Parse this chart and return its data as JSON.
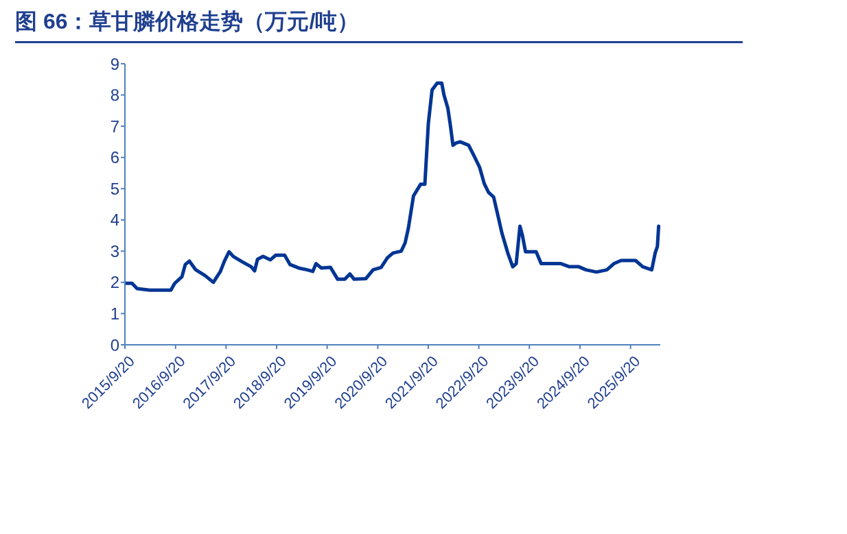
{
  "chart_data": {
    "type": "line",
    "title": "图 66：草甘膦价格走势（万元/吨）",
    "x": [
      "2015-09-20",
      "2015-11-10",
      "2015-12-17",
      "2016-03-17",
      "2016-08-17",
      "2016-09-14",
      "2016-11-05",
      "2016-11-29",
      "2016-12-29",
      "2017-02-13",
      "2017-04-20",
      "2017-06-20",
      "2017-08-10",
      "2017-09-08",
      "2017-10-11",
      "2017-11-11",
      "2018-01-14",
      "2018-03-20",
      "2018-04-14",
      "2018-05-05",
      "2018-06-14",
      "2018-08-05",
      "2018-09-14",
      "2018-11-17",
      "2018-12-26",
      "2019-02-26",
      "2019-04-29",
      "2019-06-08",
      "2019-07-02",
      "2019-08-08",
      "2019-10-14",
      "2019-12-05",
      "2020-01-26",
      "2020-03-02",
      "2020-04-02",
      "2020-06-26",
      "2020-08-17",
      "2020-10-14",
      "2020-11-29",
      "2021-01-08",
      "2021-03-08",
      "2021-04-05",
      "2021-04-29",
      "2021-06-05",
      "2021-07-26",
      "2021-08-26",
      "2021-09-20",
      "2021-10-17",
      "2021-11-23",
      "2021-12-26",
      "2022-01-11",
      "2022-02-08",
      "2022-02-26",
      "2022-03-17",
      "2022-04-08",
      "2022-05-08",
      "2022-07-08",
      "2022-08-14",
      "2022-09-26",
      "2022-10-29",
      "2022-11-29",
      "2023-01-05",
      "2023-02-11",
      "2023-03-05",
      "2023-04-17",
      "2023-05-23",
      "2023-06-17",
      "2023-07-14",
      "2023-08-02",
      "2023-08-23",
      "2023-11-08",
      "2023-12-14",
      "2024-02-20",
      "2024-05-05",
      "2024-07-05",
      "2024-09-11",
      "2024-11-02",
      "2025-01-17",
      "2025-04-02",
      "2025-05-23",
      "2025-07-14",
      "2025-10-26",
      "2025-12-17",
      "2026-02-20",
      "2026-03-17",
      "2026-04-02",
      "2026-04-11"
    ],
    "series": [
      {
        "color": "#003594",
        "values": [
          1.97,
          1.97,
          1.8,
          1.75,
          1.75,
          1.97,
          2.18,
          2.57,
          2.68,
          2.4,
          2.22,
          2.0,
          2.35,
          2.68,
          2.98,
          2.83,
          2.66,
          2.5,
          2.37,
          2.74,
          2.83,
          2.72,
          2.87,
          2.87,
          2.57,
          2.46,
          2.4,
          2.35,
          2.6,
          2.46,
          2.48,
          2.1,
          2.1,
          2.27,
          2.1,
          2.12,
          2.4,
          2.48,
          2.79,
          2.94,
          3.0,
          3.26,
          3.74,
          4.77,
          5.14,
          5.14,
          7.08,
          8.16,
          8.38,
          8.38,
          8.0,
          7.58,
          7.04,
          6.39,
          6.46,
          6.5,
          6.39,
          6.07,
          5.68,
          5.16,
          4.88,
          4.73,
          4.02,
          3.59,
          2.94,
          2.5,
          2.6,
          3.8,
          3.48,
          2.98,
          2.98,
          2.6,
          2.6,
          2.6,
          2.5,
          2.5,
          2.4,
          2.33,
          2.4,
          2.6,
          2.7,
          2.7,
          2.5,
          2.4,
          2.94,
          3.15,
          3.8
        ]
      }
    ],
    "xlim": [
      "2015-09-20",
      "2026-04-23"
    ],
    "xticks": [
      {
        "value": "2015-09-20",
        "label": "2015/9/20"
      },
      {
        "value": "2016-09-20",
        "label": "2016/9/20"
      },
      {
        "value": "2017-09-20",
        "label": "2017/9/20"
      },
      {
        "value": "2018-09-20",
        "label": "2018/9/20"
      },
      {
        "value": "2019-09-20",
        "label": "2019/9/20"
      },
      {
        "value": "2020-09-20",
        "label": "2020/9/20"
      },
      {
        "value": "2021-09-20",
        "label": "2021/9/20"
      },
      {
        "value": "2022-09-20",
        "label": "2022/9/20"
      },
      {
        "value": "2023-09-20",
        "label": "2023/9/20"
      },
      {
        "value": "2024-09-20",
        "label": "2024/9/20"
      },
      {
        "value": "2025-09-20",
        "label": "2025/9/20"
      }
    ],
    "ylim": [
      0,
      9
    ],
    "yticks": [
      0,
      1,
      2,
      3,
      4,
      5,
      6,
      7,
      8,
      9
    ],
    "grid": false,
    "legend": false,
    "marker": "none",
    "line_style": "solid"
  }
}
